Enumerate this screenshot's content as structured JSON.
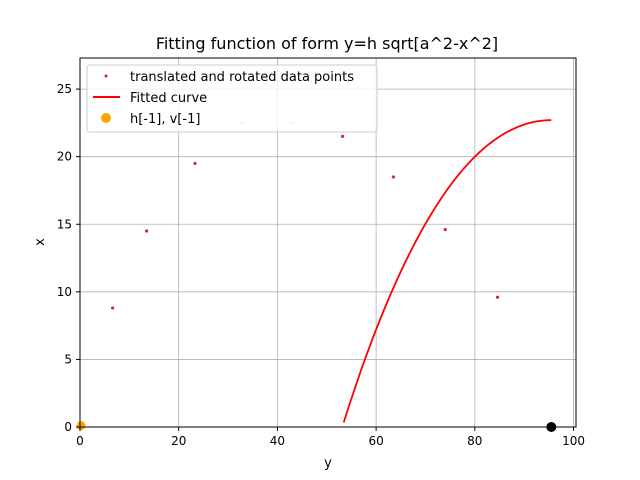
{
  "chart_data": {
    "type": "scatter",
    "title": "Fitting function of form y=h sqrt[a^2-x^2]",
    "xlabel": "y",
    "ylabel": "x",
    "xlim": [
      0,
      100.5
    ],
    "ylim": [
      0,
      27.3
    ],
    "grid": true,
    "legend_position": "upper-left",
    "x_ticks": [
      0,
      20,
      40,
      60,
      80,
      100
    ],
    "y_ticks": [
      0,
      5,
      10,
      15,
      20,
      25
    ],
    "colors": {
      "points": "#d62728",
      "curve": "#ff0000",
      "vertex": "#ffa500",
      "marker": "#000000",
      "grid": "#b0b0b0"
    },
    "series": [
      {
        "name": "translated and rotated data points",
        "kind": "scatter",
        "x": [
          0,
          6.6,
          13.5,
          23.3,
          32.8,
          42.9,
          53.2,
          63.5,
          74.0,
          84.6
        ],
        "y": [
          0,
          8.8,
          14.5,
          19.5,
          22.5,
          22.5,
          21.5,
          18.5,
          14.6,
          9.6
        ]
      },
      {
        "name": "Fitted curve",
        "kind": "line",
        "h": 1.0,
        "a": 51.0,
        "center_x": 95.5,
        "peak_y": 22.7,
        "x_end": 95.5
      },
      {
        "name": "h[-1], v[-1]",
        "kind": "scatter",
        "x": [
          0.2
        ],
        "y": [
          0.1
        ]
      },
      {
        "name": "",
        "kind": "scatter",
        "x": [
          95.5
        ],
        "y": [
          0
        ]
      }
    ]
  }
}
